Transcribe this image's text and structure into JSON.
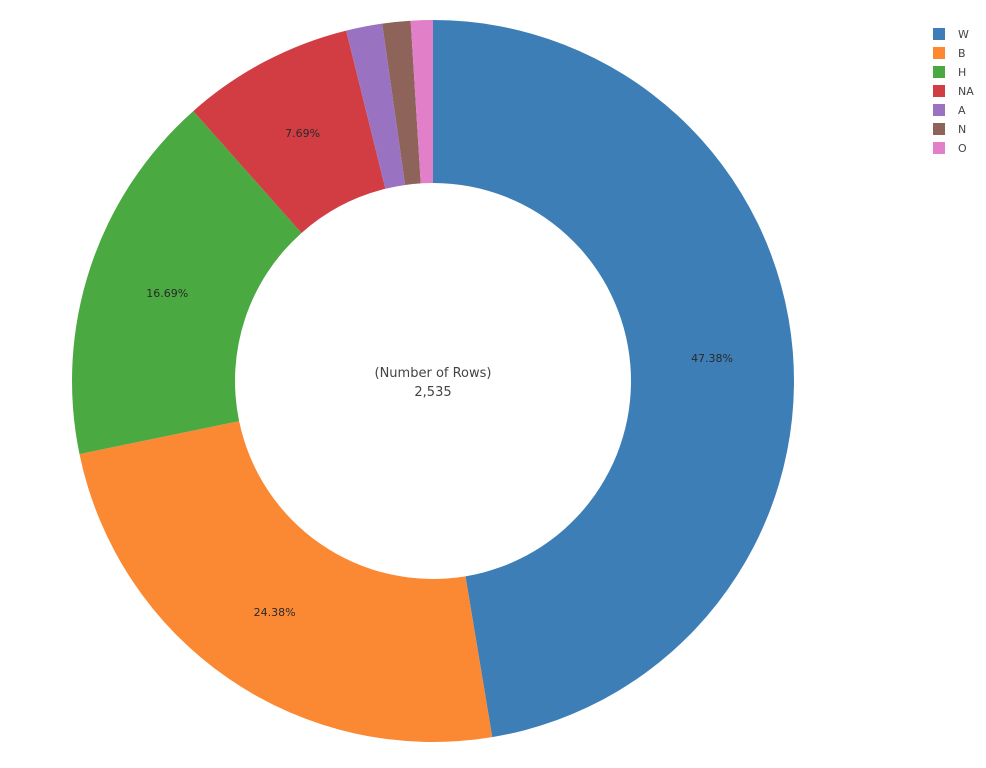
{
  "chart_data": {
    "type": "pie",
    "hole": true,
    "categories": [
      "W",
      "B",
      "H",
      "NA",
      "A",
      "N",
      "O"
    ],
    "values": [
      1201,
      618,
      423,
      195,
      41,
      32,
      25
    ],
    "percent_labels": [
      "47.38%",
      "24.38%",
      "16.69%",
      "7.69%",
      "",
      "",
      ""
    ],
    "colors": [
      "#3d7eb6",
      "#fb8832",
      "#4aa941",
      "#d13d43",
      "#9a72c2",
      "#8e645a",
      "#e17fc8"
    ],
    "center_label": "(Number of Rows)",
    "center_value": "2,535",
    "legend_position": "top-right"
  }
}
